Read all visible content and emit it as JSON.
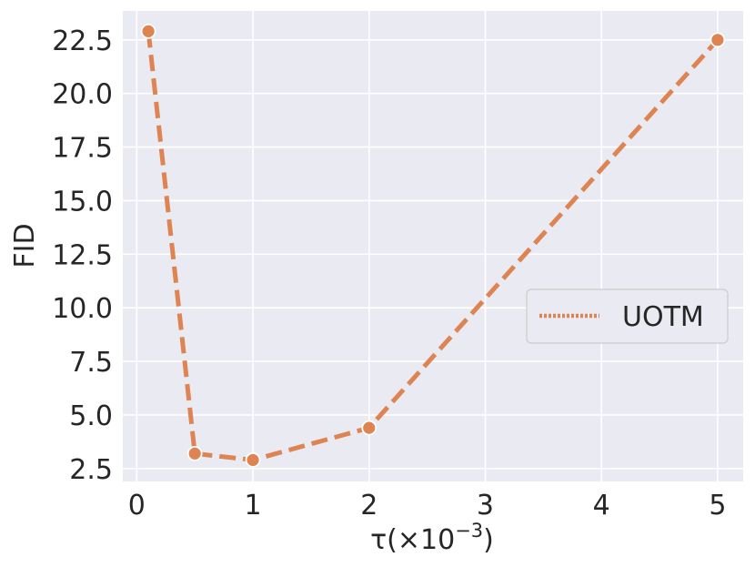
{
  "chart_data": {
    "type": "line",
    "title": "",
    "xlabel": "τ(×10",
    "xlabel_superscript": "−3",
    "xlabel_suffix": ")",
    "ylabel": "FID",
    "x_ticks": [
      "0",
      "1",
      "2",
      "3",
      "4",
      "5"
    ],
    "y_ticks": [
      "2.5",
      "5.0",
      "7.5",
      "10.0",
      "12.5",
      "15.0",
      "17.5",
      "20.0",
      "22.5"
    ],
    "xlim": [
      -0.12,
      5.22
    ],
    "ylim": [
      1.9,
      23.85
    ],
    "grid": true,
    "legend_position": "center-right",
    "series": [
      {
        "name": "UOTM",
        "color": "#dd8452",
        "line_style": "dashed",
        "marker": "circle",
        "x": [
          0.1,
          0.5,
          1,
          2,
          5
        ],
        "y": [
          22.9,
          3.2,
          2.9,
          4.4,
          22.5
        ]
      }
    ]
  }
}
